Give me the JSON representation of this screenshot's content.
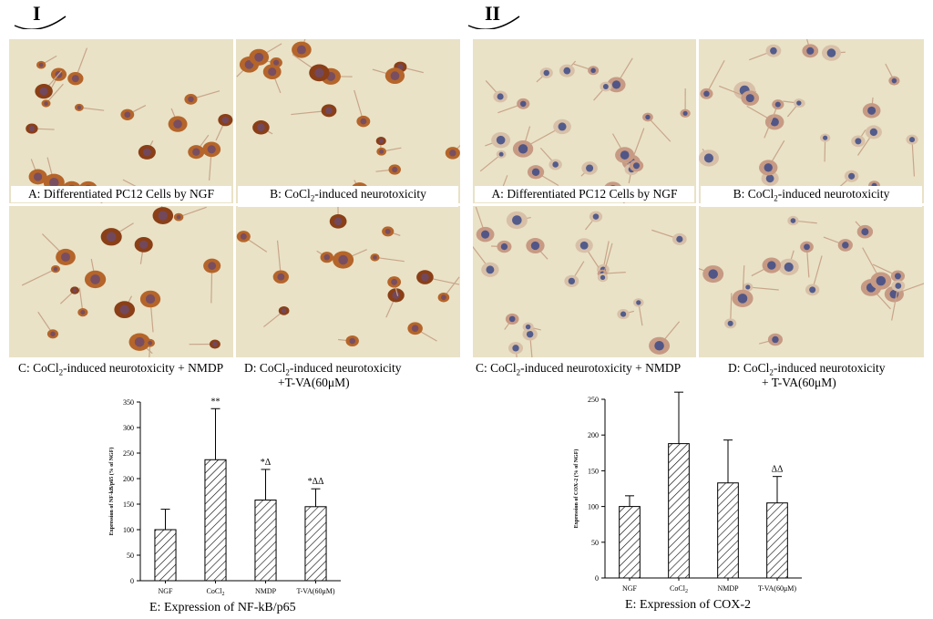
{
  "panel_I": {
    "label": "I",
    "captions": {
      "A": "A: Differentiated PC12 Cells by NGF",
      "B_pre": "B: CoCl",
      "B_sub": "2",
      "B_post": "-induced neurotoxicity",
      "C_pre": "C: CoCl",
      "C_sub": "2",
      "C_post": "-induced neurotoxicity + NMDP",
      "D_pre": "D: CoCl",
      "D_sub": "2",
      "D_post": "-induced neurotoxicity",
      "D_line2": "+T-VA(60μM)"
    },
    "chart_caption": "E: Expression of NF-kB/p65"
  },
  "panel_II": {
    "label": "II",
    "captions": {
      "A": "A: Differentiated PC12 Cells by NGF",
      "B_pre": "B: CoCl",
      "B_sub": "2",
      "B_post": "-induced neurotoxicity",
      "C_pre": "C: CoCl",
      "C_sub": "2",
      "C_post": "-induced neurotoxicity + NMDP",
      "D_pre": "D: CoCl",
      "D_sub": "2",
      "D_post": "-induced neurotoxicity",
      "D_line2": "+ T-VA(60μM)"
    },
    "chart_caption": "E: Expression of COX-2"
  },
  "colors": {
    "micro_bg": "#e9e2c6",
    "cell_brown": "#b5652a",
    "nucleus_blue": "#3c4a86"
  },
  "chart_data": [
    {
      "type": "bar",
      "categories": [
        "NGF",
        "CoCl2",
        "NMDP",
        "T-VA(60μM)"
      ],
      "category_labels": [
        {
          "t": "NGF"
        },
        {
          "t": "CoCl",
          "sub": "2"
        },
        {
          "t": "NMDP"
        },
        {
          "t": "T-VA(60μM)"
        }
      ],
      "values": [
        100,
        237,
        158,
        145
      ],
      "errors": [
        40,
        100,
        60,
        35
      ],
      "annotations": [
        "",
        "**",
        "*Δ",
        "*ΔΔ"
      ],
      "ylabel": "Expression of NF-kB/p65 (% of NGF)",
      "xlabel": "",
      "ylim": [
        0,
        350
      ],
      "yticks": [
        0,
        50,
        100,
        150,
        200,
        250,
        300,
        350
      ],
      "bar_fill": "hatched"
    },
    {
      "type": "bar",
      "categories": [
        "NGF",
        "CoCl2",
        "NMDP",
        "T-VA(60μM)"
      ],
      "category_labels": [
        {
          "t": "NGF"
        },
        {
          "t": "CoCl",
          "sub": "2"
        },
        {
          "t": "NMDP"
        },
        {
          "t": "T-VA(60μM)"
        }
      ],
      "values": [
        100,
        188,
        133,
        105
      ],
      "errors": [
        15,
        72,
        60,
        37
      ],
      "annotations": [
        "",
        "**",
        "",
        "ΔΔ"
      ],
      "ylabel": "Expression of COX-2 (% of NGF)",
      "xlabel": "",
      "ylim": [
        0,
        250
      ],
      "yticks": [
        0,
        50,
        100,
        150,
        200,
        250
      ],
      "bar_fill": "hatched"
    }
  ]
}
